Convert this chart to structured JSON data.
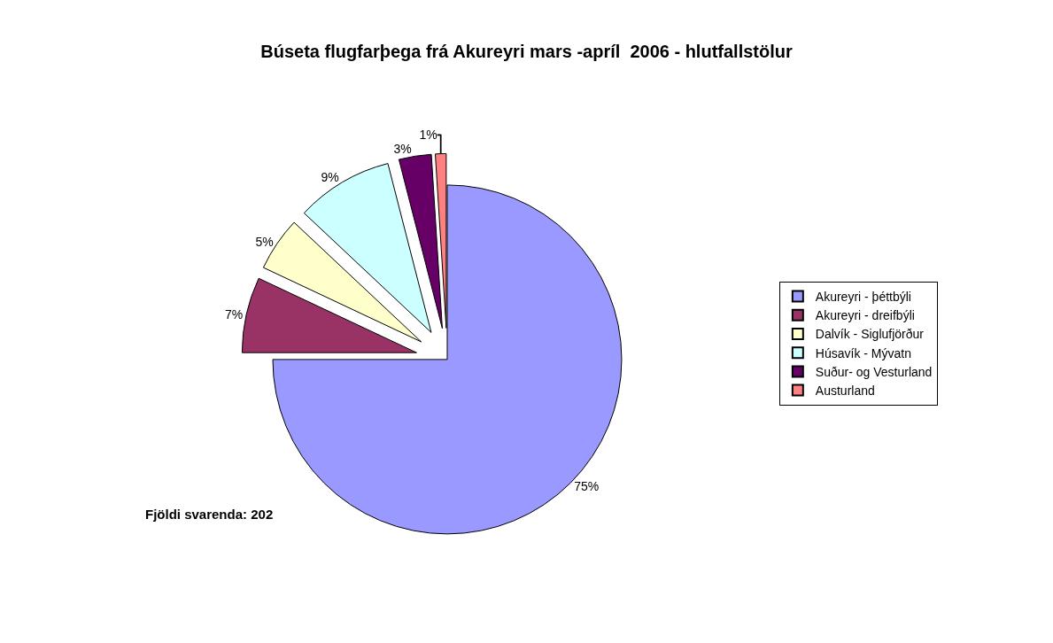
{
  "chart_data": {
    "type": "pie",
    "title": "Búseta flugfarþega frá Akureyri mars -apríl  2006 - hlutfallstölur",
    "categories": [
      "Akureyri - þéttbýli",
      "Akureyri - dreifbýli",
      "Dalvík - Siglufjörður",
      "Húsavík - Mývatn",
      "Suður- og Vesturland",
      "Austurland"
    ],
    "values": [
      75,
      7,
      5,
      9,
      3,
      1
    ],
    "value_labels": [
      "75%",
      "7%",
      "5%",
      "9%",
      "3%",
      "1%"
    ],
    "colors": [
      "#9999ff",
      "#993366",
      "#ffffcc",
      "#ccffff",
      "#660066",
      "#ff8080"
    ],
    "legend": "right",
    "annotations": [
      "Fjöldi svarenda: 202"
    ]
  }
}
